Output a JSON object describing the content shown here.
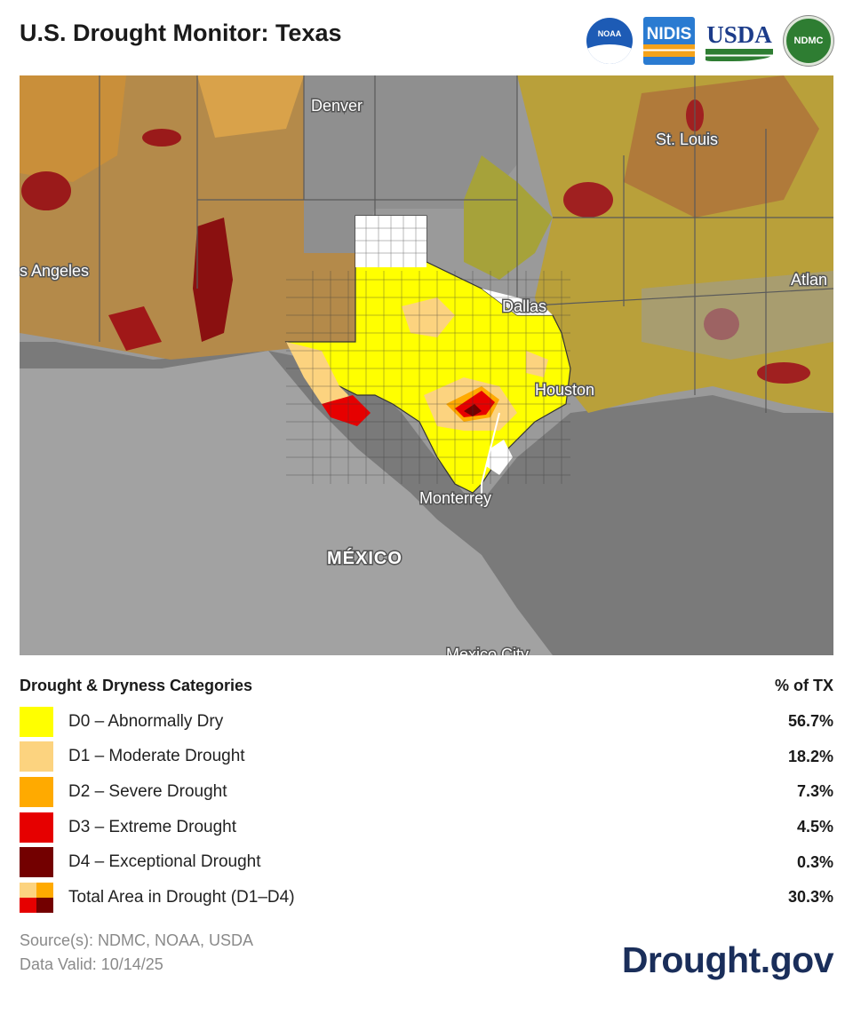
{
  "header": {
    "title": "U.S. Drought Monitor: Texas",
    "logos": {
      "noaa": "NOAA",
      "nidis": "NIDIS",
      "usda": "USDA",
      "ndmc": "NDMC"
    }
  },
  "map": {
    "labels": {
      "denver": "Denver",
      "st_louis": "St. Louis",
      "los_angeles": "s Angeles",
      "atlanta": "Atlan",
      "dallas": "Dallas",
      "houston": "Houston",
      "monterrey": "Monterrey",
      "mexico": "MÉXICO",
      "mexico_city": "Mexico City"
    }
  },
  "legend": {
    "heading": "Drought & Dryness Categories",
    "pct_heading": "% of TX",
    "rows": [
      {
        "label": "D0 – Abnormally Dry",
        "pct": "56.7%",
        "color": "#ffff00"
      },
      {
        "label": "D1 – Moderate Drought",
        "pct": "18.2%",
        "color": "#fcd37f"
      },
      {
        "label": "D2 – Severe Drought",
        "pct": "7.3%",
        "color": "#ffaa00"
      },
      {
        "label": "D3 – Extreme Drought",
        "pct": "4.5%",
        "color": "#e60000"
      },
      {
        "label": "D4 – Exceptional Drought",
        "pct": "0.3%",
        "color": "#730000"
      }
    ],
    "total": {
      "label": "Total Area in Drought (D1–D4)",
      "pct": "30.3%"
    }
  },
  "footer": {
    "sources": "Source(s): NDMC, NOAA, USDA",
    "valid": "Data Valid: 10/14/25",
    "brand": "Drought.gov"
  }
}
